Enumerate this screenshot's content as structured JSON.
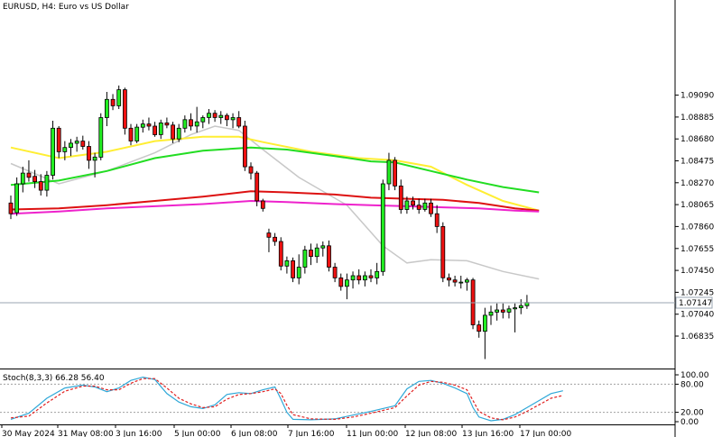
{
  "chart_data": {
    "type": "candlestick",
    "title": "EURUSD, H4:  Euro vs US Dollar",
    "current_price": 1.07147,
    "current_price_label": "1.07147",
    "price_axis": {
      "range": [
        1.0654,
        1.0998
      ],
      "ticks": [
        "1.09090",
        "1.08885",
        "1.08680",
        "1.08475",
        "1.08270",
        "1.08065",
        "1.07860",
        "1.07655",
        "1.07450",
        "1.07245",
        "1.07040",
        "1.06835"
      ]
    },
    "time_axis": {
      "labels": [
        "30 May 2024",
        "31 May 08:00",
        "3 Jun 16:00",
        "5 Jun 00:00",
        "6 Jun 08:00",
        "7 Jun 16:00",
        "11 Jun 00:00",
        "12 Jun 08:00",
        "13 Jun 16:00",
        "17 Jun 00:00"
      ]
    },
    "candles": [
      [
        1.0808,
        1.0815,
        1.0793,
        1.0798
      ],
      [
        1.0799,
        1.0832,
        1.0796,
        1.0826
      ],
      [
        1.0826,
        1.0842,
        1.0818,
        1.0836
      ],
      [
        1.0836,
        1.0848,
        1.0828,
        1.0832
      ],
      [
        1.0833,
        1.0839,
        1.0822,
        1.0828
      ],
      [
        1.0828,
        1.0835,
        1.0815,
        1.082
      ],
      [
        1.082,
        1.0838,
        1.0814,
        1.0834
      ],
      [
        1.0834,
        1.0885,
        1.083,
        1.0878
      ],
      [
        1.0878,
        1.088,
        1.085,
        1.0856
      ],
      [
        1.0856,
        1.0866,
        1.0848,
        1.086
      ],
      [
        1.086,
        1.0868,
        1.0852,
        1.0864
      ],
      [
        1.0864,
        1.087,
        1.0856,
        1.0866
      ],
      [
        1.0866,
        1.0871,
        1.0858,
        1.0861
      ],
      [
        1.0861,
        1.0866,
        1.084,
        1.0848
      ],
      [
        1.0848,
        1.0855,
        1.0832,
        1.0851
      ],
      [
        1.0851,
        1.0892,
        1.0848,
        1.0888
      ],
      [
        1.0888,
        1.0912,
        1.088,
        1.0905
      ],
      [
        1.0905,
        1.091,
        1.0895,
        1.0899
      ],
      [
        1.0899,
        1.0918,
        1.0896,
        1.0914
      ],
      [
        1.0914,
        1.0916,
        1.0872,
        1.0878
      ],
      [
        1.0878,
        1.0882,
        1.0862,
        1.0866
      ],
      [
        1.0866,
        1.0882,
        1.0864,
        1.0879
      ],
      [
        1.0879,
        1.0886,
        1.0874,
        1.0882
      ],
      [
        1.0882,
        1.0888,
        1.0876,
        1.088
      ],
      [
        1.088,
        1.0884,
        1.087,
        1.0872
      ],
      [
        1.0872,
        1.0886,
        1.0868,
        1.0883
      ],
      [
        1.0883,
        1.0888,
        1.0878,
        1.0881
      ],
      [
        1.0881,
        1.0884,
        1.0864,
        1.0868
      ],
      [
        1.0868,
        1.0882,
        1.0865,
        1.0878
      ],
      [
        1.0878,
        1.089,
        1.0874,
        1.0886
      ],
      [
        1.0886,
        1.0892,
        1.0876,
        1.088
      ],
      [
        1.088,
        1.0898,
        1.0874,
        1.0884
      ],
      [
        1.0884,
        1.089,
        1.0878,
        1.0888
      ],
      [
        1.0888,
        1.0896,
        1.0882,
        1.0892
      ],
      [
        1.0892,
        1.0895,
        1.0884,
        1.0888
      ],
      [
        1.0888,
        1.0894,
        1.0882,
        1.089
      ],
      [
        1.089,
        1.0892,
        1.088,
        1.0886
      ],
      [
        1.0886,
        1.0892,
        1.0878,
        1.0888
      ],
      [
        1.0888,
        1.0894,
        1.0878,
        1.088
      ],
      [
        1.088,
        1.0885,
        1.0838,
        1.0842
      ],
      [
        1.0842,
        1.0846,
        1.083,
        1.0836
      ],
      [
        1.0836,
        1.0838,
        1.0805,
        1.081
      ],
      [
        1.081,
        1.0812,
        1.08,
        1.0803
      ],
      [
        1.078,
        1.0784,
        1.0762,
        1.0776
      ],
      [
        1.0776,
        1.078,
        1.0768,
        1.0772
      ],
      [
        1.0772,
        1.0776,
        1.0745,
        1.0749
      ],
      [
        1.0749,
        1.0758,
        1.0742,
        1.0754
      ],
      [
        1.0754,
        1.0757,
        1.0734,
        1.0738
      ],
      [
        1.0738,
        1.076,
        1.0732,
        1.0748
      ],
      [
        1.0748,
        1.0768,
        1.0742,
        1.0764
      ],
      [
        1.0764,
        1.077,
        1.075,
        1.0758
      ],
      [
        1.0758,
        1.077,
        1.0752,
        1.0766
      ],
      [
        1.0766,
        1.0772,
        1.0758,
        1.0768
      ],
      [
        1.0768,
        1.0773,
        1.0744,
        1.0748
      ],
      [
        1.0748,
        1.0752,
        1.0734,
        1.0738
      ],
      [
        1.0738,
        1.0742,
        1.0726,
        1.073
      ],
      [
        1.073,
        1.0742,
        1.0718,
        1.0736
      ],
      [
        1.0736,
        1.0744,
        1.0728,
        1.074
      ],
      [
        1.074,
        1.0746,
        1.0732,
        1.0736
      ],
      [
        1.0736,
        1.0744,
        1.073,
        1.074
      ],
      [
        1.074,
        1.0746,
        1.0734,
        1.0738
      ],
      [
        1.0738,
        1.0752,
        1.0732,
        1.0744
      ],
      [
        1.0744,
        1.083,
        1.074,
        1.0826
      ],
      [
        1.0826,
        1.0855,
        1.082,
        1.0848
      ],
      [
        1.0848,
        1.0851,
        1.082,
        1.0824
      ],
      [
        1.0824,
        1.083,
        1.0798,
        1.0802
      ],
      [
        1.0802,
        1.0814,
        1.0798,
        1.081
      ],
      [
        1.081,
        1.0814,
        1.0802,
        1.0806
      ],
      [
        1.0806,
        1.0812,
        1.0798,
        1.0802
      ],
      [
        1.0802,
        1.0812,
        1.08,
        1.0808
      ],
      [
        1.0808,
        1.0812,
        1.0795,
        1.0798
      ],
      [
        1.0798,
        1.0806,
        1.078,
        1.0786
      ],
      [
        1.0786,
        1.079,
        1.0734,
        1.0738
      ],
      [
        1.0738,
        1.0742,
        1.073,
        1.0736
      ],
      [
        1.0736,
        1.074,
        1.073,
        1.0734
      ],
      [
        1.0734,
        1.074,
        1.0728,
        1.0734
      ],
      [
        1.0734,
        1.0738,
        1.0726,
        1.0736
      ],
      [
        1.0736,
        1.0738,
        1.069,
        1.0694
      ],
      [
        1.0694,
        1.0698,
        1.0682,
        1.0688
      ],
      [
        1.0688,
        1.071,
        1.0662,
        1.0703
      ],
      [
        1.0703,
        1.0712,
        1.0694,
        1.0706
      ],
      [
        1.0706,
        1.0714,
        1.0698,
        1.0708
      ],
      [
        1.0708,
        1.0714,
        1.07,
        1.0706
      ],
      [
        1.0706,
        1.0712,
        1.07,
        1.0709
      ],
      [
        1.0709,
        1.0714,
        1.0687,
        1.071
      ],
      [
        1.071,
        1.0718,
        1.0704,
        1.0712
      ],
      [
        1.0712,
        1.0722,
        1.0709,
        1.0715
      ]
    ],
    "moving_averages": [
      {
        "color": "#c8c8c8",
        "points": [
          [
            0,
            1.0845
          ],
          [
            8,
            1.0826
          ],
          [
            16,
            1.0838
          ],
          [
            24,
            1.0855
          ],
          [
            30,
            1.0872
          ],
          [
            34,
            1.088
          ],
          [
            38,
            1.0876
          ],
          [
            42,
            1.0858
          ],
          [
            48,
            1.0832
          ],
          [
            56,
            1.0806
          ],
          [
            62,
            1.0768
          ],
          [
            66,
            1.0752
          ],
          [
            70,
            1.0755
          ],
          [
            76,
            1.0754
          ],
          [
            82,
            1.0744
          ],
          [
            88,
            1.0737
          ]
        ]
      },
      {
        "color": "#ffee33",
        "points": [
          [
            0,
            1.086
          ],
          [
            8,
            1.085
          ],
          [
            16,
            1.0856
          ],
          [
            24,
            1.0866
          ],
          [
            32,
            1.087
          ],
          [
            38,
            1.087
          ],
          [
            42,
            1.0865
          ],
          [
            50,
            1.0856
          ],
          [
            58,
            1.085
          ],
          [
            64,
            1.0848
          ],
          [
            70,
            1.0842
          ],
          [
            76,
            1.0825
          ],
          [
            82,
            1.081
          ],
          [
            88,
            1.0801
          ]
        ]
      },
      {
        "color": "#22dd22",
        "points": [
          [
            0,
            1.0825
          ],
          [
            8,
            1.0829
          ],
          [
            16,
            1.0838
          ],
          [
            24,
            1.085
          ],
          [
            32,
            1.0857
          ],
          [
            40,
            1.086
          ],
          [
            46,
            1.0858
          ],
          [
            54,
            1.0852
          ],
          [
            60,
            1.0847
          ],
          [
            64,
            1.0846
          ],
          [
            70,
            1.0838
          ],
          [
            76,
            1.083
          ],
          [
            82,
            1.0823
          ],
          [
            88,
            1.0818
          ]
        ]
      },
      {
        "color": "#dd1111",
        "points": [
          [
            0,
            1.0802
          ],
          [
            8,
            1.0803
          ],
          [
            16,
            1.0806
          ],
          [
            24,
            1.081
          ],
          [
            32,
            1.0814
          ],
          [
            40,
            1.0819
          ],
          [
            46,
            1.0818
          ],
          [
            54,
            1.0816
          ],
          [
            60,
            1.0813
          ],
          [
            66,
            1.0812
          ],
          [
            72,
            1.0811
          ],
          [
            78,
            1.0808
          ],
          [
            84,
            1.0803
          ],
          [
            88,
            1.0801
          ]
        ]
      },
      {
        "color": "#ee22cc",
        "points": [
          [
            0,
            1.0798
          ],
          [
            8,
            1.08
          ],
          [
            16,
            1.0803
          ],
          [
            24,
            1.0805
          ],
          [
            32,
            1.0807
          ],
          [
            40,
            1.081
          ],
          [
            46,
            1.0809
          ],
          [
            54,
            1.0807
          ],
          [
            60,
            1.0806
          ],
          [
            66,
            1.0805
          ],
          [
            72,
            1.0804
          ],
          [
            78,
            1.0803
          ],
          [
            84,
            1.0801
          ],
          [
            88,
            1.08
          ]
        ]
      }
    ],
    "stochastic": {
      "label": "Stoch(8,3,3) 66.28 56.40",
      "ticks": [
        "100.00",
        "80.00",
        "20.00",
        "0.00"
      ],
      "levels": [
        80,
        20
      ],
      "main": [
        [
          0,
          5
        ],
        [
          3,
          18
        ],
        [
          6,
          50
        ],
        [
          9,
          72
        ],
        [
          12,
          78
        ],
        [
          14,
          74
        ],
        [
          16,
          64
        ],
        [
          18,
          72
        ],
        [
          20,
          88
        ],
        [
          22,
          95
        ],
        [
          24,
          90
        ],
        [
          26,
          60
        ],
        [
          28,
          42
        ],
        [
          30,
          32
        ],
        [
          32,
          28
        ],
        [
          34,
          36
        ],
        [
          36,
          58
        ],
        [
          38,
          62
        ],
        [
          40,
          60
        ],
        [
          42,
          68
        ],
        [
          44,
          74
        ],
        [
          45,
          48
        ],
        [
          46,
          20
        ],
        [
          47,
          5
        ],
        [
          50,
          4
        ],
        [
          54,
          6
        ],
        [
          57,
          14
        ],
        [
          60,
          22
        ],
        [
          62,
          28
        ],
        [
          64,
          34
        ],
        [
          66,
          70
        ],
        [
          68,
          86
        ],
        [
          70,
          88
        ],
        [
          72,
          82
        ],
        [
          74,
          72
        ],
        [
          76,
          60
        ],
        [
          77,
          30
        ],
        [
          78,
          10
        ],
        [
          80,
          2
        ],
        [
          82,
          5
        ],
        [
          84,
          15
        ],
        [
          86,
          30
        ],
        [
          88,
          45
        ],
        [
          90,
          60
        ],
        [
          92,
          66
        ]
      ],
      "signal": [
        [
          0,
          8
        ],
        [
          3,
          12
        ],
        [
          6,
          40
        ],
        [
          9,
          65
        ],
        [
          12,
          76
        ],
        [
          14,
          76
        ],
        [
          16,
          68
        ],
        [
          18,
          68
        ],
        [
          20,
          82
        ],
        [
          22,
          92
        ],
        [
          24,
          92
        ],
        [
          26,
          72
        ],
        [
          28,
          50
        ],
        [
          30,
          38
        ],
        [
          32,
          30
        ],
        [
          34,
          32
        ],
        [
          36,
          48
        ],
        [
          38,
          58
        ],
        [
          40,
          60
        ],
        [
          42,
          64
        ],
        [
          44,
          70
        ],
        [
          45,
          60
        ],
        [
          46,
          35
        ],
        [
          47,
          15
        ],
        [
          50,
          6
        ],
        [
          54,
          5
        ],
        [
          57,
          10
        ],
        [
          60,
          18
        ],
        [
          62,
          24
        ],
        [
          64,
          30
        ],
        [
          66,
          55
        ],
        [
          68,
          78
        ],
        [
          70,
          86
        ],
        [
          72,
          84
        ],
        [
          74,
          78
        ],
        [
          76,
          68
        ],
        [
          77,
          45
        ],
        [
          78,
          22
        ],
        [
          80,
          8
        ],
        [
          82,
          4
        ],
        [
          84,
          10
        ],
        [
          86,
          22
        ],
        [
          88,
          36
        ],
        [
          90,
          50
        ],
        [
          92,
          56
        ]
      ]
    }
  }
}
